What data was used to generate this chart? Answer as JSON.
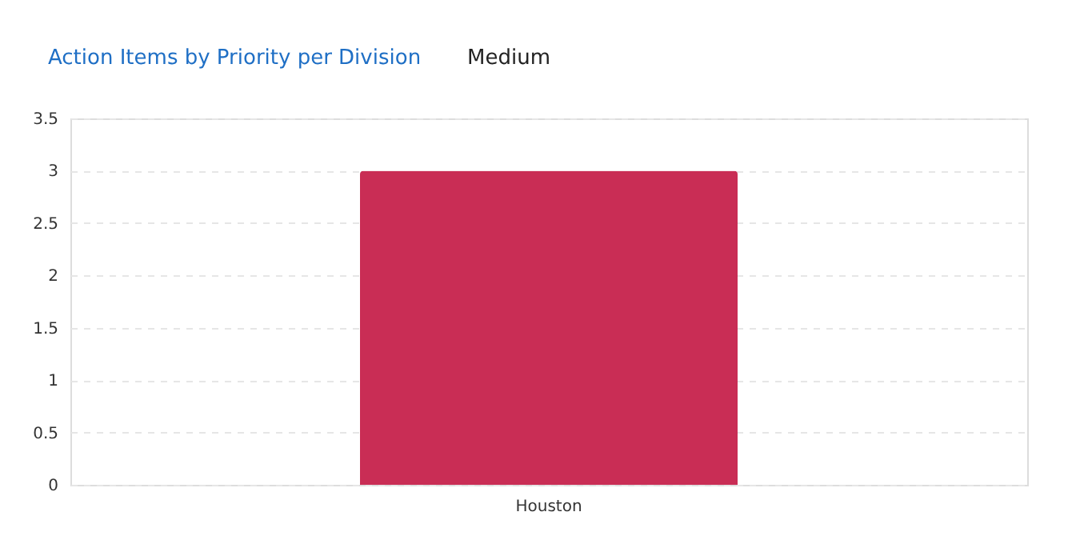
{
  "chart_data": {
    "type": "bar",
    "title": "Action Items by Priority per Division",
    "subtitle": "Medium",
    "categories": [
      "Houston"
    ],
    "values": [
      3
    ],
    "color": "#c92d55",
    "ylim": [
      0,
      3.5
    ],
    "yticks": [
      0,
      0.5,
      1,
      1.5,
      2,
      2.5,
      3,
      3.5
    ],
    "grid": true
  }
}
